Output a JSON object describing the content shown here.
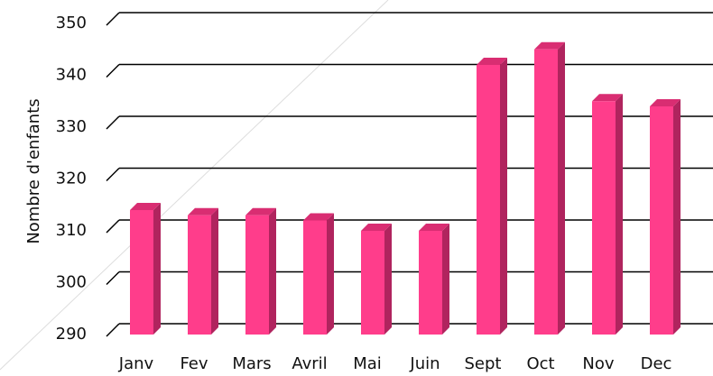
{
  "chart_data": {
    "type": "bar3d",
    "y_label": "Nombre d'enfants",
    "categories": [
      "Janv",
      "Fev",
      "Mars",
      "Avril",
      "Mai",
      "Juin",
      "Sept",
      "Oct",
      "Nov",
      "Dec"
    ],
    "values": [
      314,
      313,
      313,
      312,
      310,
      310,
      342,
      345,
      335,
      334
    ],
    "color": "#ff3d8b",
    "ylim": [
      290,
      350
    ],
    "yticks": [
      290,
      300,
      310,
      320,
      330,
      340,
      350
    ],
    "grid": true
  }
}
